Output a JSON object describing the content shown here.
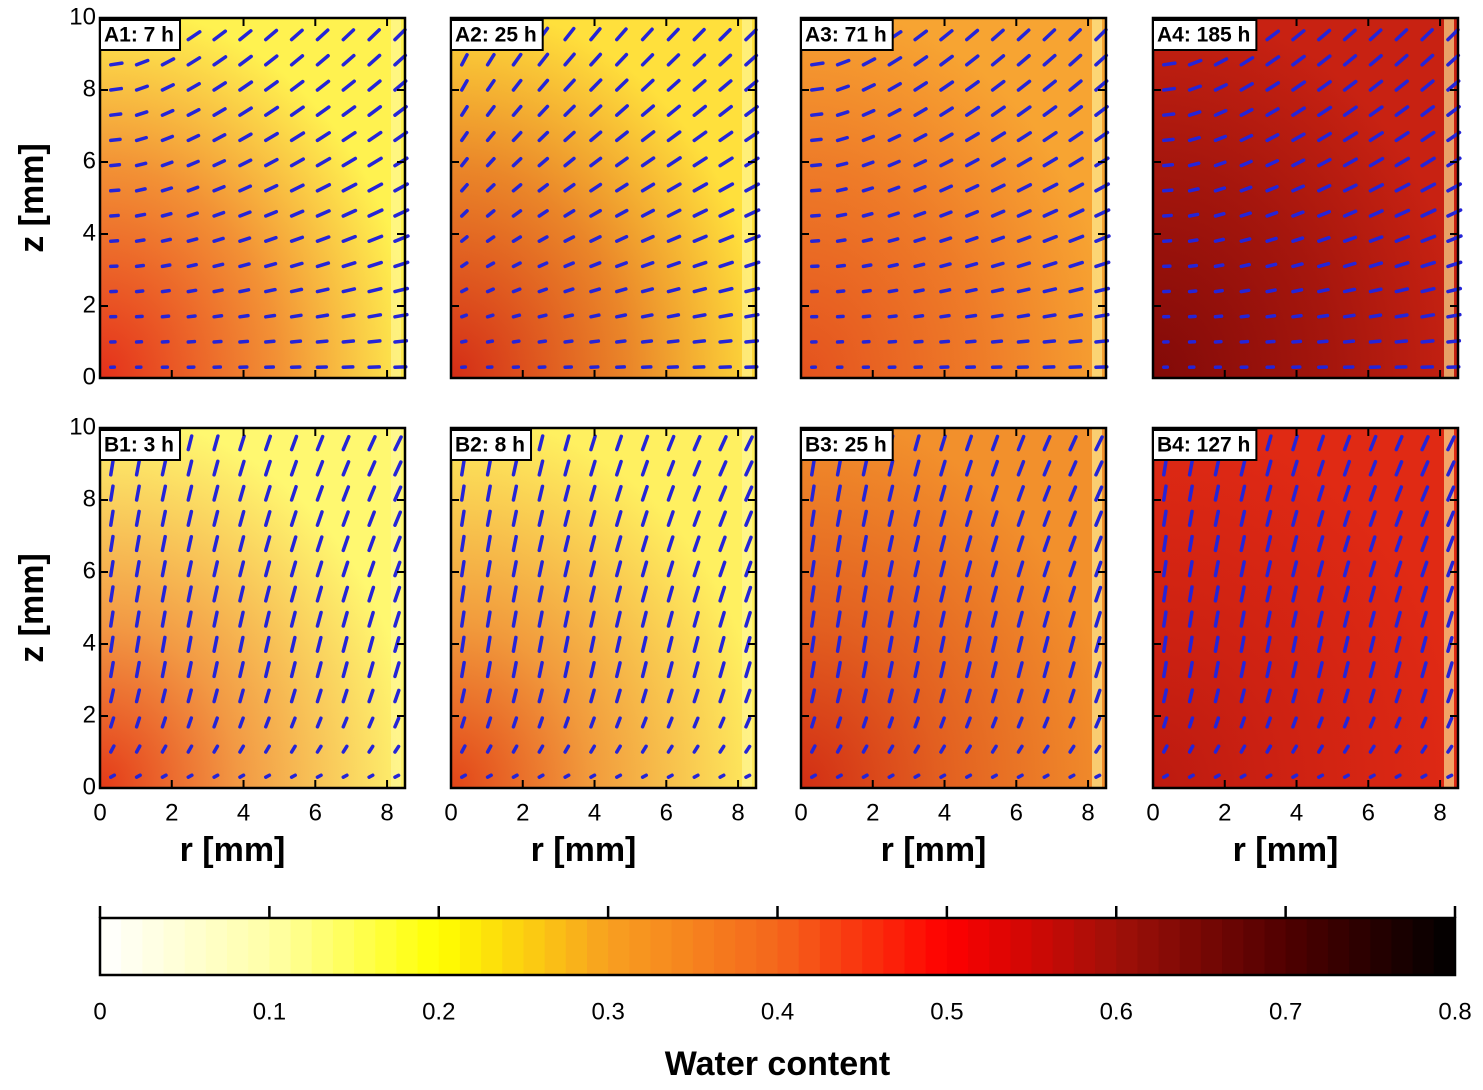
{
  "chart_data": [
    {
      "type": "heatmap",
      "title": "A1: 7 h",
      "xlim": [
        0,
        8.5
      ],
      "ylim": [
        0,
        10
      ],
      "xticks": [
        0,
        2,
        4,
        6,
        8
      ],
      "yticks": [
        0,
        2,
        4,
        6,
        8,
        10
      ],
      "xticklabels": false,
      "yticklabels": true,
      "ylabel": "z [mm]",
      "colors": [
        "#fff250",
        "#e4301a"
      ]
    },
    {
      "type": "heatmap",
      "title": "A2: 25 h",
      "xlim": [
        0,
        8.5
      ],
      "ylim": [
        0,
        10
      ],
      "xticks": [
        0,
        2,
        4,
        6,
        8
      ],
      "yticks": [
        0,
        2,
        4,
        6,
        8,
        10
      ],
      "xticklabels": false,
      "yticklabels": false,
      "colors": [
        "#ffe03c",
        "#d42c16"
      ]
    },
    {
      "type": "heatmap",
      "title": "A3: 71 h",
      "xlim": [
        0,
        8.5
      ],
      "ylim": [
        0,
        10
      ],
      "xticks": [
        0,
        2,
        4,
        6,
        8
      ],
      "yticks": [
        0,
        2,
        4,
        6,
        8,
        10
      ],
      "xticklabels": false,
      "yticklabels": false,
      "colors": [
        "#f7a432",
        "#e4521e"
      ]
    },
    {
      "type": "heatmap",
      "title": "A4: 185 h",
      "xlim": [
        0,
        8.5
      ],
      "ylim": [
        0,
        10
      ],
      "xticks": [
        0,
        2,
        4,
        6,
        8
      ],
      "yticks": [
        0,
        2,
        4,
        6,
        8,
        10
      ],
      "xticklabels": false,
      "yticklabels": false,
      "colors": [
        "#c82212",
        "#820a08"
      ]
    },
    {
      "type": "heatmap",
      "title": "B1: 3 h",
      "xlim": [
        0,
        8.5
      ],
      "ylim": [
        0,
        10
      ],
      "xticks": [
        0,
        2,
        4,
        6,
        8
      ],
      "yticks": [
        0,
        2,
        4,
        6,
        8,
        10
      ],
      "xticklabels": true,
      "yticklabels": true,
      "xlabel": "r [mm]",
      "ylabel": "z [mm]",
      "colors": [
        "#fff870",
        "#e43a18"
      ]
    },
    {
      "type": "heatmap",
      "title": "B2: 8 h",
      "xlim": [
        0,
        8.5
      ],
      "ylim": [
        0,
        10
      ],
      "xticks": [
        0,
        2,
        4,
        6,
        8
      ],
      "yticks": [
        0,
        2,
        4,
        6,
        8,
        10
      ],
      "xticklabels": true,
      "yticklabels": false,
      "xlabel": "r [mm]",
      "colors": [
        "#fff060",
        "#e24418"
      ]
    },
    {
      "type": "heatmap",
      "title": "B3: 25 h",
      "xlim": [
        0,
        8.5
      ],
      "ylim": [
        0,
        10
      ],
      "xticks": [
        0,
        2,
        4,
        6,
        8
      ],
      "yticks": [
        0,
        2,
        4,
        6,
        8,
        10
      ],
      "xticklabels": true,
      "yticklabels": false,
      "xlabel": "r [mm]",
      "colors": [
        "#f2902c",
        "#d22e14"
      ]
    },
    {
      "type": "heatmap",
      "title": "B4: 127 h",
      "xlim": [
        0,
        8.5
      ],
      "ylim": [
        0,
        10
      ],
      "xticks": [
        0,
        2,
        4,
        6,
        8
      ],
      "yticks": [
        0,
        2,
        4,
        6,
        8,
        10
      ],
      "xticklabels": true,
      "yticklabels": false,
      "xlabel": "r [mm]",
      "colors": [
        "#e02a14",
        "#bc1a10"
      ]
    },
    {
      "type": "colorbar",
      "xlabel": "Water content",
      "xlim": [
        0,
        0.8
      ],
      "xticks": [
        0,
        0.1,
        0.2,
        0.3,
        0.4,
        0.5,
        0.6,
        0.7,
        0.8
      ],
      "colormap": [
        "#ffffff",
        "#ffffa8",
        "#ffff00",
        "#f8a020",
        "#f4661c",
        "#ff0000",
        "#a01008",
        "#500000",
        "#000000"
      ]
    }
  ]
}
